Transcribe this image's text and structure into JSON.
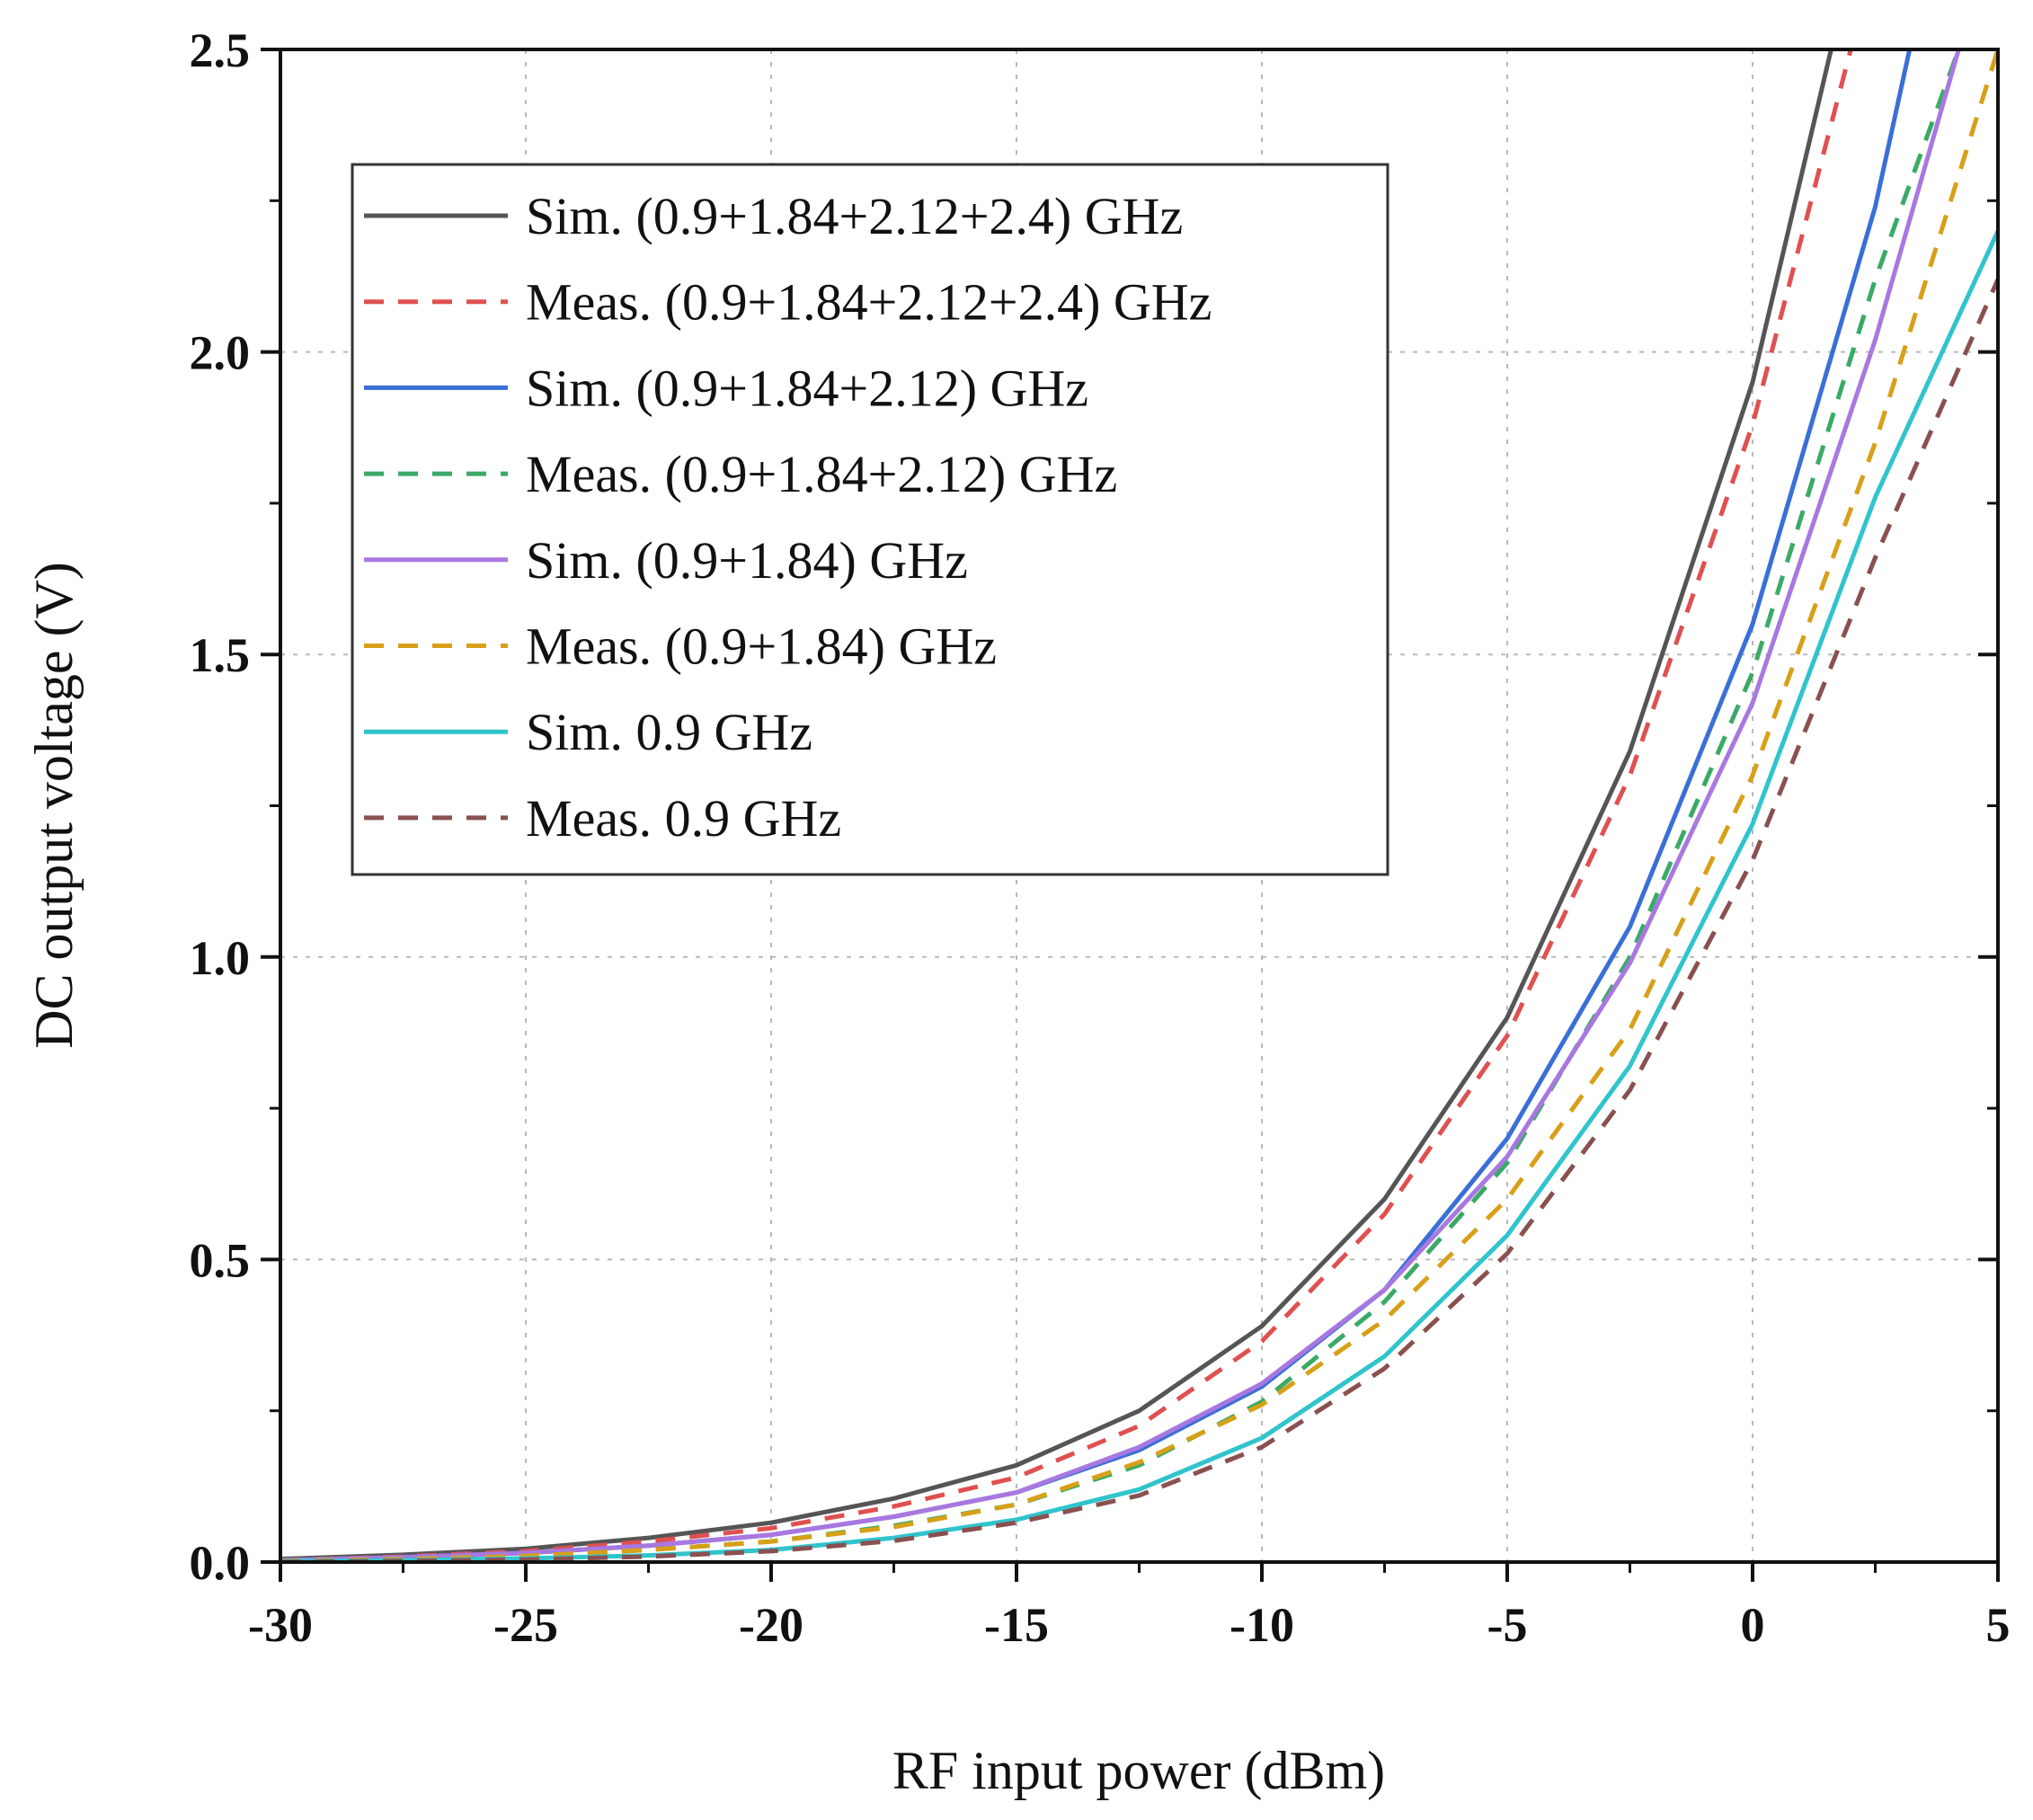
{
  "chart_data": {
    "type": "line",
    "xlabel": "RF input power (dBm)",
    "ylabel": "DC output voltage (V)",
    "xlim": [
      -30,
      5
    ],
    "ylim": [
      0,
      2.5
    ],
    "x_ticks": [
      "-30",
      "-25",
      "-20",
      "-15",
      "-10",
      "-5",
      "0",
      "5"
    ],
    "y_ticks": [
      "0.0",
      "0.5",
      "1.0",
      "1.5",
      "2.0",
      "2.5"
    ],
    "grid": true,
    "legend_position": "top-left",
    "series": [
      {
        "name": "Sim. (0.9+1.84+2.12+2.4) GHz",
        "color": "#555555",
        "dash": "solid",
        "x": [
          -30,
          -27.5,
          -25,
          -22.5,
          -20,
          -17.5,
          -15,
          -12.5,
          -10,
          -7.5,
          -5,
          -2.5,
          0,
          1.6
        ],
        "y": [
          0.005,
          0.012,
          0.022,
          0.04,
          0.065,
          0.105,
          0.16,
          0.25,
          0.39,
          0.6,
          0.9,
          1.34,
          1.95,
          2.5
        ]
      },
      {
        "name": "Meas. (0.9+1.84+2.12+2.4) GHz",
        "color": "#e05050",
        "dash": "dashed",
        "x": [
          -30,
          -27.5,
          -25,
          -22.5,
          -20,
          -17.5,
          -15,
          -12.5,
          -10,
          -7.5,
          -5,
          -2.5,
          0,
          2.0
        ],
        "y": [
          0.003,
          0.009,
          0.018,
          0.034,
          0.056,
          0.092,
          0.14,
          0.225,
          0.365,
          0.575,
          0.87,
          1.3,
          1.88,
          2.5
        ]
      },
      {
        "name": "Sim. (0.9+1.84+2.12) GHz",
        "color": "#3a6fd8",
        "dash": "solid",
        "x": [
          -30,
          -27.5,
          -25,
          -22.5,
          -20,
          -17.5,
          -15,
          -12.5,
          -10,
          -7.5,
          -5,
          -2.5,
          0,
          2.5,
          3.2
        ],
        "y": [
          0.003,
          0.008,
          0.015,
          0.027,
          0.045,
          0.075,
          0.115,
          0.185,
          0.29,
          0.45,
          0.7,
          1.05,
          1.55,
          2.24,
          2.5
        ]
      },
      {
        "name": "Meas. (0.9+1.84+2.12) GHz",
        "color": "#3aaa66",
        "dash": "dashed",
        "x": [
          -30,
          -27.5,
          -25,
          -22.5,
          -20,
          -17.5,
          -15,
          -12.5,
          -10,
          -7.5,
          -5,
          -2.5,
          0,
          2.5,
          4.2
        ],
        "y": [
          0.002,
          0.005,
          0.01,
          0.02,
          0.034,
          0.06,
          0.095,
          0.16,
          0.265,
          0.43,
          0.66,
          1.0,
          1.47,
          2.12,
          2.5
        ]
      },
      {
        "name": "Sim. (0.9+1.84) GHz",
        "color": "#a878e0",
        "dash": "solid",
        "x": [
          -30,
          -27.5,
          -25,
          -22.5,
          -20,
          -17.5,
          -15,
          -12.5,
          -10,
          -7.5,
          -5,
          -2.5,
          0,
          2.5,
          4.2
        ],
        "y": [
          0.003,
          0.008,
          0.015,
          0.027,
          0.045,
          0.075,
          0.115,
          0.19,
          0.295,
          0.45,
          0.67,
          0.99,
          1.42,
          2.02,
          2.5
        ]
      },
      {
        "name": "Meas. (0.9+1.84) GHz",
        "color": "#d8a018",
        "dash": "dashed",
        "x": [
          -30,
          -27.5,
          -25,
          -22.5,
          -20,
          -17.5,
          -15,
          -12.5,
          -10,
          -7.5,
          -5,
          -2.5,
          0,
          2.5,
          5
        ],
        "y": [
          0.002,
          0.005,
          0.01,
          0.02,
          0.034,
          0.058,
          0.095,
          0.165,
          0.26,
          0.4,
          0.6,
          0.88,
          1.3,
          1.85,
          2.5
        ]
      },
      {
        "name": "Sim. 0.9 GHz",
        "color": "#30c4cc",
        "dash": "solid",
        "x": [
          -30,
          -27.5,
          -25,
          -22.5,
          -20,
          -17.5,
          -15,
          -12.5,
          -10,
          -7.5,
          -5,
          -2.5,
          0,
          2.5,
          5
        ],
        "y": [
          0.001,
          0.003,
          0.006,
          0.011,
          0.02,
          0.04,
          0.07,
          0.12,
          0.205,
          0.34,
          0.54,
          0.82,
          1.22,
          1.76,
          2.2
        ]
      },
      {
        "name": "Meas. 0.9 GHz",
        "color": "#8a5050",
        "dash": "dashed",
        "x": [
          -30,
          -27.5,
          -25,
          -22.5,
          -20,
          -17.5,
          -15,
          -12.5,
          -10,
          -7.5,
          -5,
          -2.5,
          0,
          2.5,
          5
        ],
        "y": [
          0.0,
          0.002,
          0.004,
          0.009,
          0.018,
          0.035,
          0.065,
          0.11,
          0.19,
          0.32,
          0.51,
          0.78,
          1.16,
          1.66,
          2.12
        ]
      }
    ]
  }
}
